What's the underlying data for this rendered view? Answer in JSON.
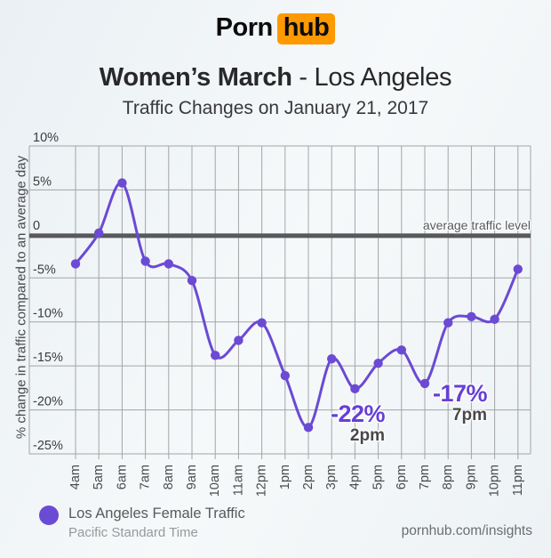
{
  "header": {
    "logo_part1": "Porn",
    "logo_part2": "hub",
    "title_main": "Women’s March",
    "title_separator": " - ",
    "title_location": "Los Angeles",
    "subtitle": "Traffic Changes on January 21, 2017"
  },
  "chart_data": {
    "type": "line",
    "title": "Women’s March - Los Angeles",
    "subtitle": "Traffic Changes on January 21, 2017",
    "ylabel": "% change in traffic compared to an average day",
    "x": [
      "4am",
      "5am",
      "6am",
      "7am",
      "8am",
      "9am",
      "10am",
      "11am",
      "12pm",
      "1pm",
      "2pm",
      "3pm",
      "4pm",
      "5pm",
      "6pm",
      "7pm",
      "8pm",
      "9pm",
      "10pm",
      "11pm"
    ],
    "series": [
      {
        "name": "Los Angeles Female Traffic",
        "values": [
          -3.4,
          0.1,
          5.8,
          -3.1,
          -3.4,
          -5.3,
          -13.8,
          -12.1,
          -10.1,
          -16.1,
          -22,
          -14.2,
          -17.6,
          -14.7,
          -13.2,
          -17,
          -10.1,
          -9.4,
          -9.7,
          -4.0
        ]
      }
    ],
    "ylim": [
      -25,
      10
    ],
    "y_ticks": [
      {
        "label": "10%",
        "value": 10
      },
      {
        "label": "5%",
        "value": 5
      },
      {
        "label": "0",
        "value": 0
      },
      {
        "label": "-5%",
        "value": -5
      },
      {
        "label": "-10%",
        "value": -10
      },
      {
        "label": "-15%",
        "value": -15
      },
      {
        "label": "-20%",
        "value": -20
      },
      {
        "label": "-25%",
        "value": -25
      }
    ],
    "grid": true,
    "legend_position": "bottom-left",
    "zero_line_label": "average traffic level",
    "annotations": [
      {
        "text": "-22%",
        "time": "2pm",
        "x": "2pm",
        "value": -22
      },
      {
        "text": "-17%",
        "time": "7pm",
        "x": "7pm",
        "value": -17
      }
    ]
  },
  "legend": {
    "label": "Los Angeles Female Traffic",
    "sublabel": "Pacific Standard Time"
  },
  "footer": {
    "site": "pornhub.com/insights"
  },
  "colors": {
    "accent_purple": "#6b4ad4",
    "annotation_purple": "#6540d4",
    "logo_orange": "#ff9900",
    "zero_line_gray": "#58595b",
    "grid_gray": "#a4a4a6"
  }
}
